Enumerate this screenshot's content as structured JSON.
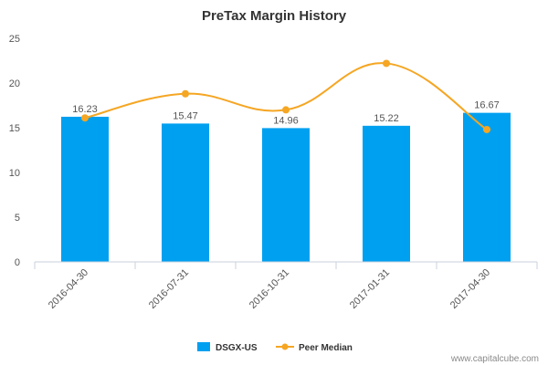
{
  "chart_data": {
    "type": "bar",
    "title": "PreTax Margin History",
    "categories": [
      "2016-04-30",
      "2016-07-31",
      "2016-10-31",
      "2017-01-31",
      "2017-04-30"
    ],
    "series": [
      {
        "name": "DSGX-US",
        "type": "bar",
        "values": [
          16.23,
          15.47,
          14.96,
          15.22,
          16.67
        ],
        "color": "#00a0f0"
      },
      {
        "name": "Peer Median",
        "type": "line",
        "values": [
          16.1,
          18.8,
          17.0,
          22.2,
          14.8
        ],
        "color": "#f5a623"
      }
    ],
    "data_labels": [
      "16.23",
      "15.47",
      "14.96",
      "15.22",
      "16.67"
    ],
    "ylim": [
      0,
      25
    ],
    "yticks": [
      "0",
      "5",
      "10",
      "15",
      "20",
      "25"
    ],
    "grid": false,
    "legend": "bottom-center"
  },
  "watermark": "www.capitalcube.com",
  "colors": {
    "bar": "#00a0f0",
    "line": "#f5a623",
    "axis": "#c8d2dc"
  }
}
